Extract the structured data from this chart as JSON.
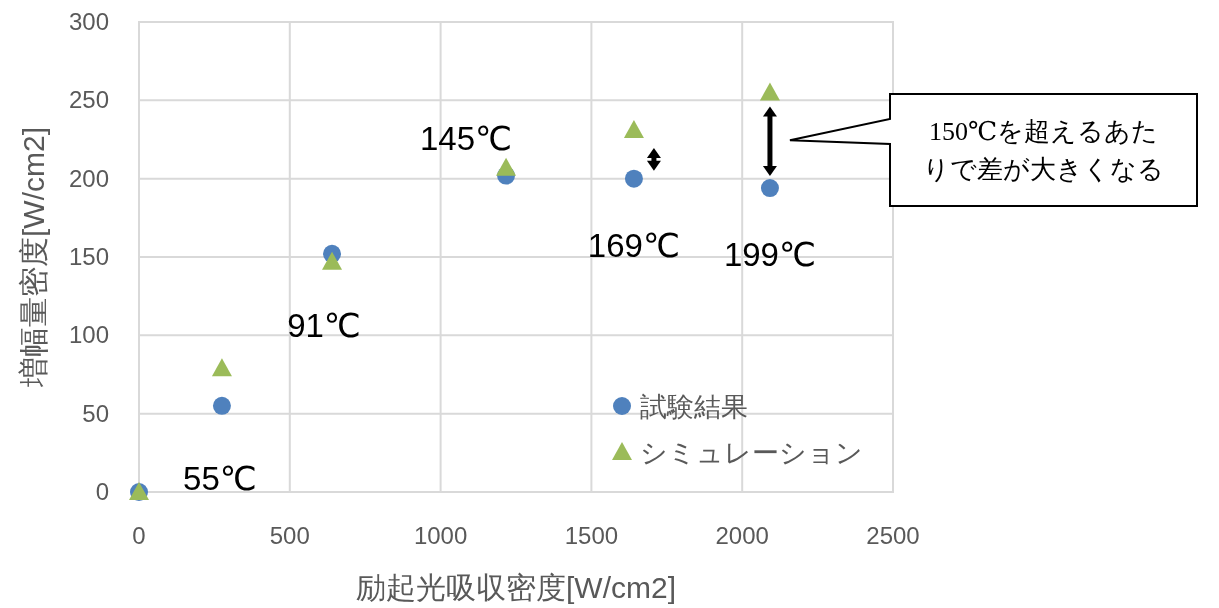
{
  "chart_data": {
    "type": "scatter",
    "xlabel": "励起光吸収密度[W/cm2]",
    "ylabel": "増幅量密度[W/cm2]",
    "xlim": [
      0,
      2500
    ],
    "xticks": [
      0,
      500,
      1000,
      1500,
      2000,
      2500
    ],
    "ylim": [
      0,
      300
    ],
    "yticks": [
      0,
      50,
      100,
      150,
      200,
      250,
      300
    ],
    "grid": true,
    "legend": "bottom right",
    "series": [
      {
        "name": "試験結果",
        "color": "#4f81bd",
        "marker": "circle",
        "x": [
          0,
          275,
          640,
          1217,
          1641,
          2092
        ],
        "values": [
          0,
          55,
          152,
          202,
          200,
          194
        ]
      },
      {
        "name": "シミュレーション",
        "color": "#9bbb59",
        "marker": "triangle",
        "x": [
          0,
          275,
          640,
          1217,
          1641,
          2092
        ],
        "values": [
          0,
          79,
          147,
          207,
          231,
          255
        ]
      }
    ],
    "annotations": [
      {
        "text": "55℃",
        "x": 275,
        "y": 55
      },
      {
        "text": "91℃",
        "x": 640,
        "y": 150
      },
      {
        "text": "145℃",
        "x": 1217,
        "y": 207
      },
      {
        "text": "169℃",
        "x": 1641,
        "y": 200
      },
      {
        "text": "199℃",
        "x": 2092,
        "y": 194
      },
      "150℃を超えるあたりで差が大きくなる"
    ]
  }
}
